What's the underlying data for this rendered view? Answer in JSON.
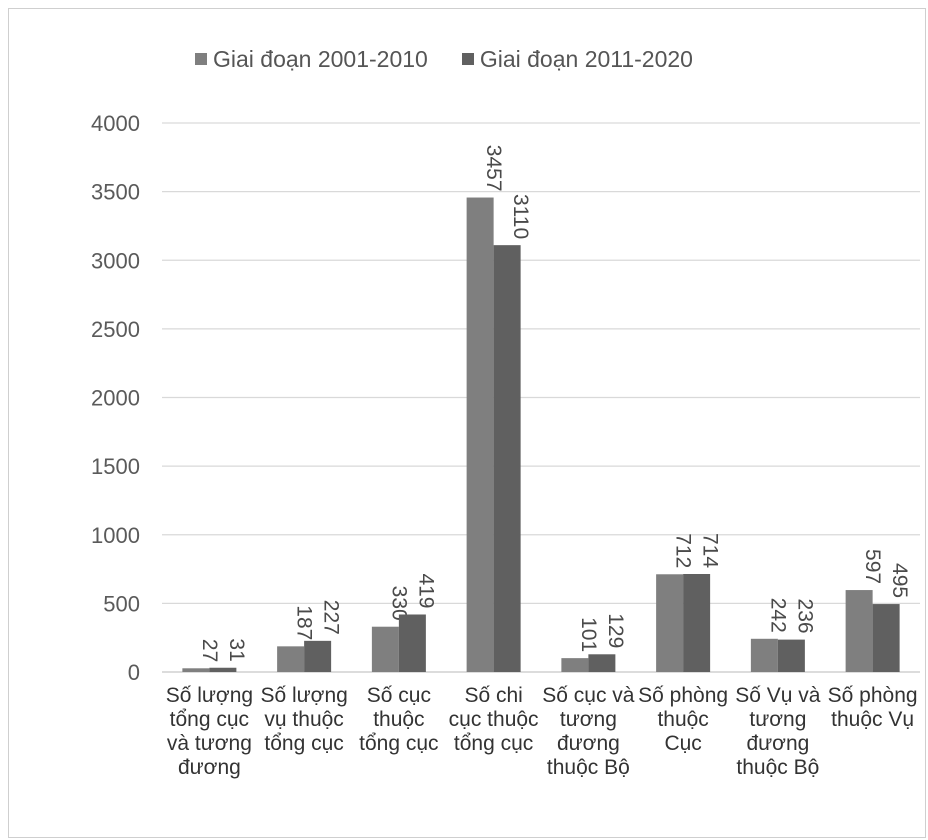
{
  "chart_data": {
    "type": "bar",
    "categories": [
      [
        "Số lượng",
        "tổng cục",
        "và tương",
        "đương"
      ],
      [
        "Số lượng",
        "vụ thuộc",
        "tổng cục"
      ],
      [
        "Số cục",
        "thuộc",
        "tổng cục"
      ],
      [
        "Số chi",
        "cục thuộc",
        "tổng cục"
      ],
      [
        "Số cục và",
        "tương",
        "đương",
        "thuộc Bộ"
      ],
      [
        "Số phòng",
        "thuộc",
        "Cục"
      ],
      [
        "Số Vụ và",
        "tương",
        "đương",
        "thuộc Bộ"
      ],
      [
        "Số phòng",
        "thuộc Vụ"
      ]
    ],
    "series": [
      {
        "name": "Giai đoạn 2001-2010",
        "color": "#7f7f7f",
        "values": [
          27,
          187,
          330,
          3457,
          101,
          712,
          242,
          597
        ]
      },
      {
        "name": "Giai đoạn 2011-2020",
        "color": "#606060",
        "values": [
          31,
          227,
          419,
          3110,
          129,
          714,
          236,
          495
        ]
      }
    ],
    "ylim": [
      0,
      4000
    ],
    "yticks": [
      "0",
      "500",
      "1000",
      "1500",
      "2000",
      "2500",
      "3000",
      "3500",
      "4000"
    ],
    "grid": true,
    "legend_position": "top"
  }
}
